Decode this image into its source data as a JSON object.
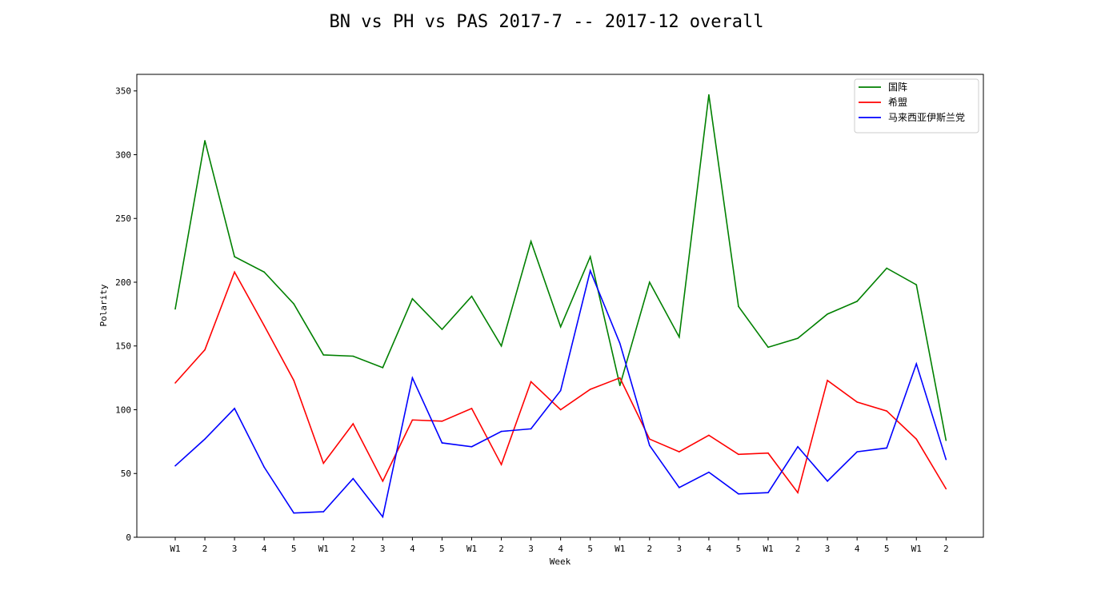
{
  "chart_data": {
    "type": "line",
    "title": "BN vs PH vs PAS 2017-7 -- 2017-12 overall",
    "xlabel": "Week",
    "ylabel": "Polarity",
    "ylim": [
      0,
      363
    ],
    "yticks": [
      0,
      50,
      100,
      150,
      200,
      250,
      300,
      350
    ],
    "grid": false,
    "legend_position": "top-right",
    "categories": [
      "W1",
      "2",
      "3",
      "4",
      "5",
      "W1",
      "2",
      "3",
      "4",
      "5",
      "W1",
      "2",
      "3",
      "4",
      "5",
      "W1",
      "2",
      "3",
      "4",
      "5",
      "W1",
      "2",
      "3",
      "4",
      "5",
      "W1",
      "2"
    ],
    "series": [
      {
        "name": "国阵",
        "color": "#008000",
        "values": [
          179,
          311,
          220,
          208,
          183,
          143,
          142,
          133,
          187,
          163,
          189,
          150,
          232,
          165,
          220,
          119,
          200,
          157,
          347,
          181,
          149,
          156,
          175,
          185,
          211,
          198,
          76
        ]
      },
      {
        "name": "希盟",
        "color": "#ff0000",
        "values": [
          121,
          147,
          208,
          166,
          123,
          58,
          89,
          44,
          92,
          91,
          101,
          57,
          122,
          100,
          116,
          125,
          77,
          67,
          80,
          65,
          66,
          35,
          123,
          106,
          99,
          77,
          38
        ]
      },
      {
        "name": "马来西亚伊斯兰党",
        "color": "#0000ff",
        "values": [
          56,
          77,
          101,
          55,
          19,
          20,
          46,
          16,
          125,
          74,
          71,
          83,
          85,
          115,
          209,
          152,
          72,
          39,
          51,
          34,
          35,
          71,
          44,
          67,
          70,
          136,
          61
        ]
      }
    ]
  }
}
